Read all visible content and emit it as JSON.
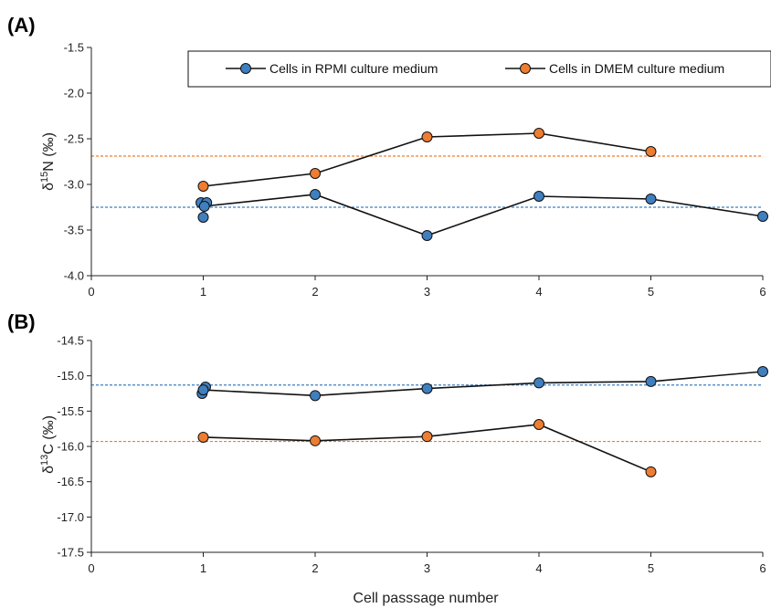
{
  "colors": {
    "rpmi": "#3f7fbf",
    "dmem": "#ed7d31",
    "line": "#111111",
    "axis": "#222222"
  },
  "legend": {
    "rpmi": "Cells in RPMI culture medium",
    "dmem": "Cells in DMEM culture medium"
  },
  "chart_data": [
    {
      "type": "line",
      "panel_label": "(A)",
      "ylabel": "δ15N (‰)",
      "ylabel_parts": {
        "symbol": "δ",
        "superscript": "15",
        "element": "N",
        "unit": " (‰)"
      },
      "xlabel": "",
      "xlim": [
        0,
        6
      ],
      "ylim": [
        -4.0,
        -1.5
      ],
      "xticks": [
        "0",
        "1",
        "2",
        "3",
        "4",
        "5",
        "6"
      ],
      "yticks": [
        "-1.5",
        "-2.0",
        "-2.5",
        "-3.0",
        "-3.5",
        "-4.0"
      ],
      "legend_position": "top",
      "series": [
        {
          "key": "rpmi",
          "name": "Cells in RPMI culture medium",
          "line": [
            [
              1,
              -3.24
            ],
            [
              2,
              -3.11
            ],
            [
              3,
              -3.56
            ],
            [
              4,
              -3.13
            ],
            [
              5,
              -3.16
            ],
            [
              6,
              -3.35
            ]
          ],
          "points": [
            [
              1,
              -3.36
            ],
            [
              0.98,
              -3.2
            ],
            [
              1.03,
              -3.2
            ],
            [
              1.01,
              -3.24
            ],
            [
              2,
              -3.11
            ],
            [
              3,
              -3.56
            ],
            [
              4,
              -3.13
            ],
            [
              5,
              -3.16
            ],
            [
              6,
              -3.35
            ]
          ],
          "reference_line": -3.25
        },
        {
          "key": "dmem",
          "name": "Cells in DMEM culture medium",
          "line": [
            [
              1,
              -3.02
            ],
            [
              2,
              -2.88
            ],
            [
              3,
              -2.48
            ],
            [
              4,
              -2.44
            ],
            [
              5,
              -2.64
            ]
          ],
          "points": [
            [
              1,
              -3.02
            ],
            [
              2,
              -2.88
            ],
            [
              3,
              -2.48
            ],
            [
              4,
              -2.44
            ],
            [
              5,
              -2.64
            ]
          ],
          "reference_line": -2.69
        }
      ]
    },
    {
      "type": "line",
      "panel_label": "(B)",
      "ylabel": "δ13C (‰)",
      "ylabel_parts": {
        "symbol": "δ",
        "superscript": "13",
        "element": "C",
        "unit": " (‰)"
      },
      "xlabel": "Cell passsage number",
      "xlim": [
        0,
        6
      ],
      "ylim": [
        -17.5,
        -14.5
      ],
      "xticks": [
        "0",
        "1",
        "2",
        "3",
        "4",
        "5",
        "6"
      ],
      "yticks": [
        "-14.5",
        "-15.0",
        "-15.5",
        "-16.0",
        "-16.5",
        "-17.0",
        "-17.5"
      ],
      "series": [
        {
          "key": "rpmi",
          "name": "Cells in RPMI culture medium",
          "line": [
            [
              1,
              -15.2
            ],
            [
              2,
              -15.28
            ],
            [
              3,
              -15.18
            ],
            [
              4,
              -15.1
            ],
            [
              5,
              -15.08
            ],
            [
              6,
              -14.94
            ]
          ],
          "points": [
            [
              0.99,
              -15.25
            ],
            [
              1.02,
              -15.16
            ],
            [
              1,
              -15.2
            ],
            [
              2,
              -15.28
            ],
            [
              3,
              -15.18
            ],
            [
              4,
              -15.1
            ],
            [
              5,
              -15.08
            ],
            [
              6,
              -14.94
            ]
          ],
          "reference_line": -15.13
        },
        {
          "key": "dmem",
          "name": "Cells in DMEM culture medium",
          "line": [
            [
              1,
              -15.87
            ],
            [
              2,
              -15.92
            ],
            [
              3,
              -15.86
            ],
            [
              4,
              -15.69
            ],
            [
              5,
              -16.36
            ]
          ],
          "points": [
            [
              1,
              -15.87
            ],
            [
              2,
              -15.92
            ],
            [
              3,
              -15.86
            ],
            [
              4,
              -15.69
            ],
            [
              5,
              -16.36
            ]
          ],
          "reference_line": -15.93
        }
      ]
    }
  ]
}
